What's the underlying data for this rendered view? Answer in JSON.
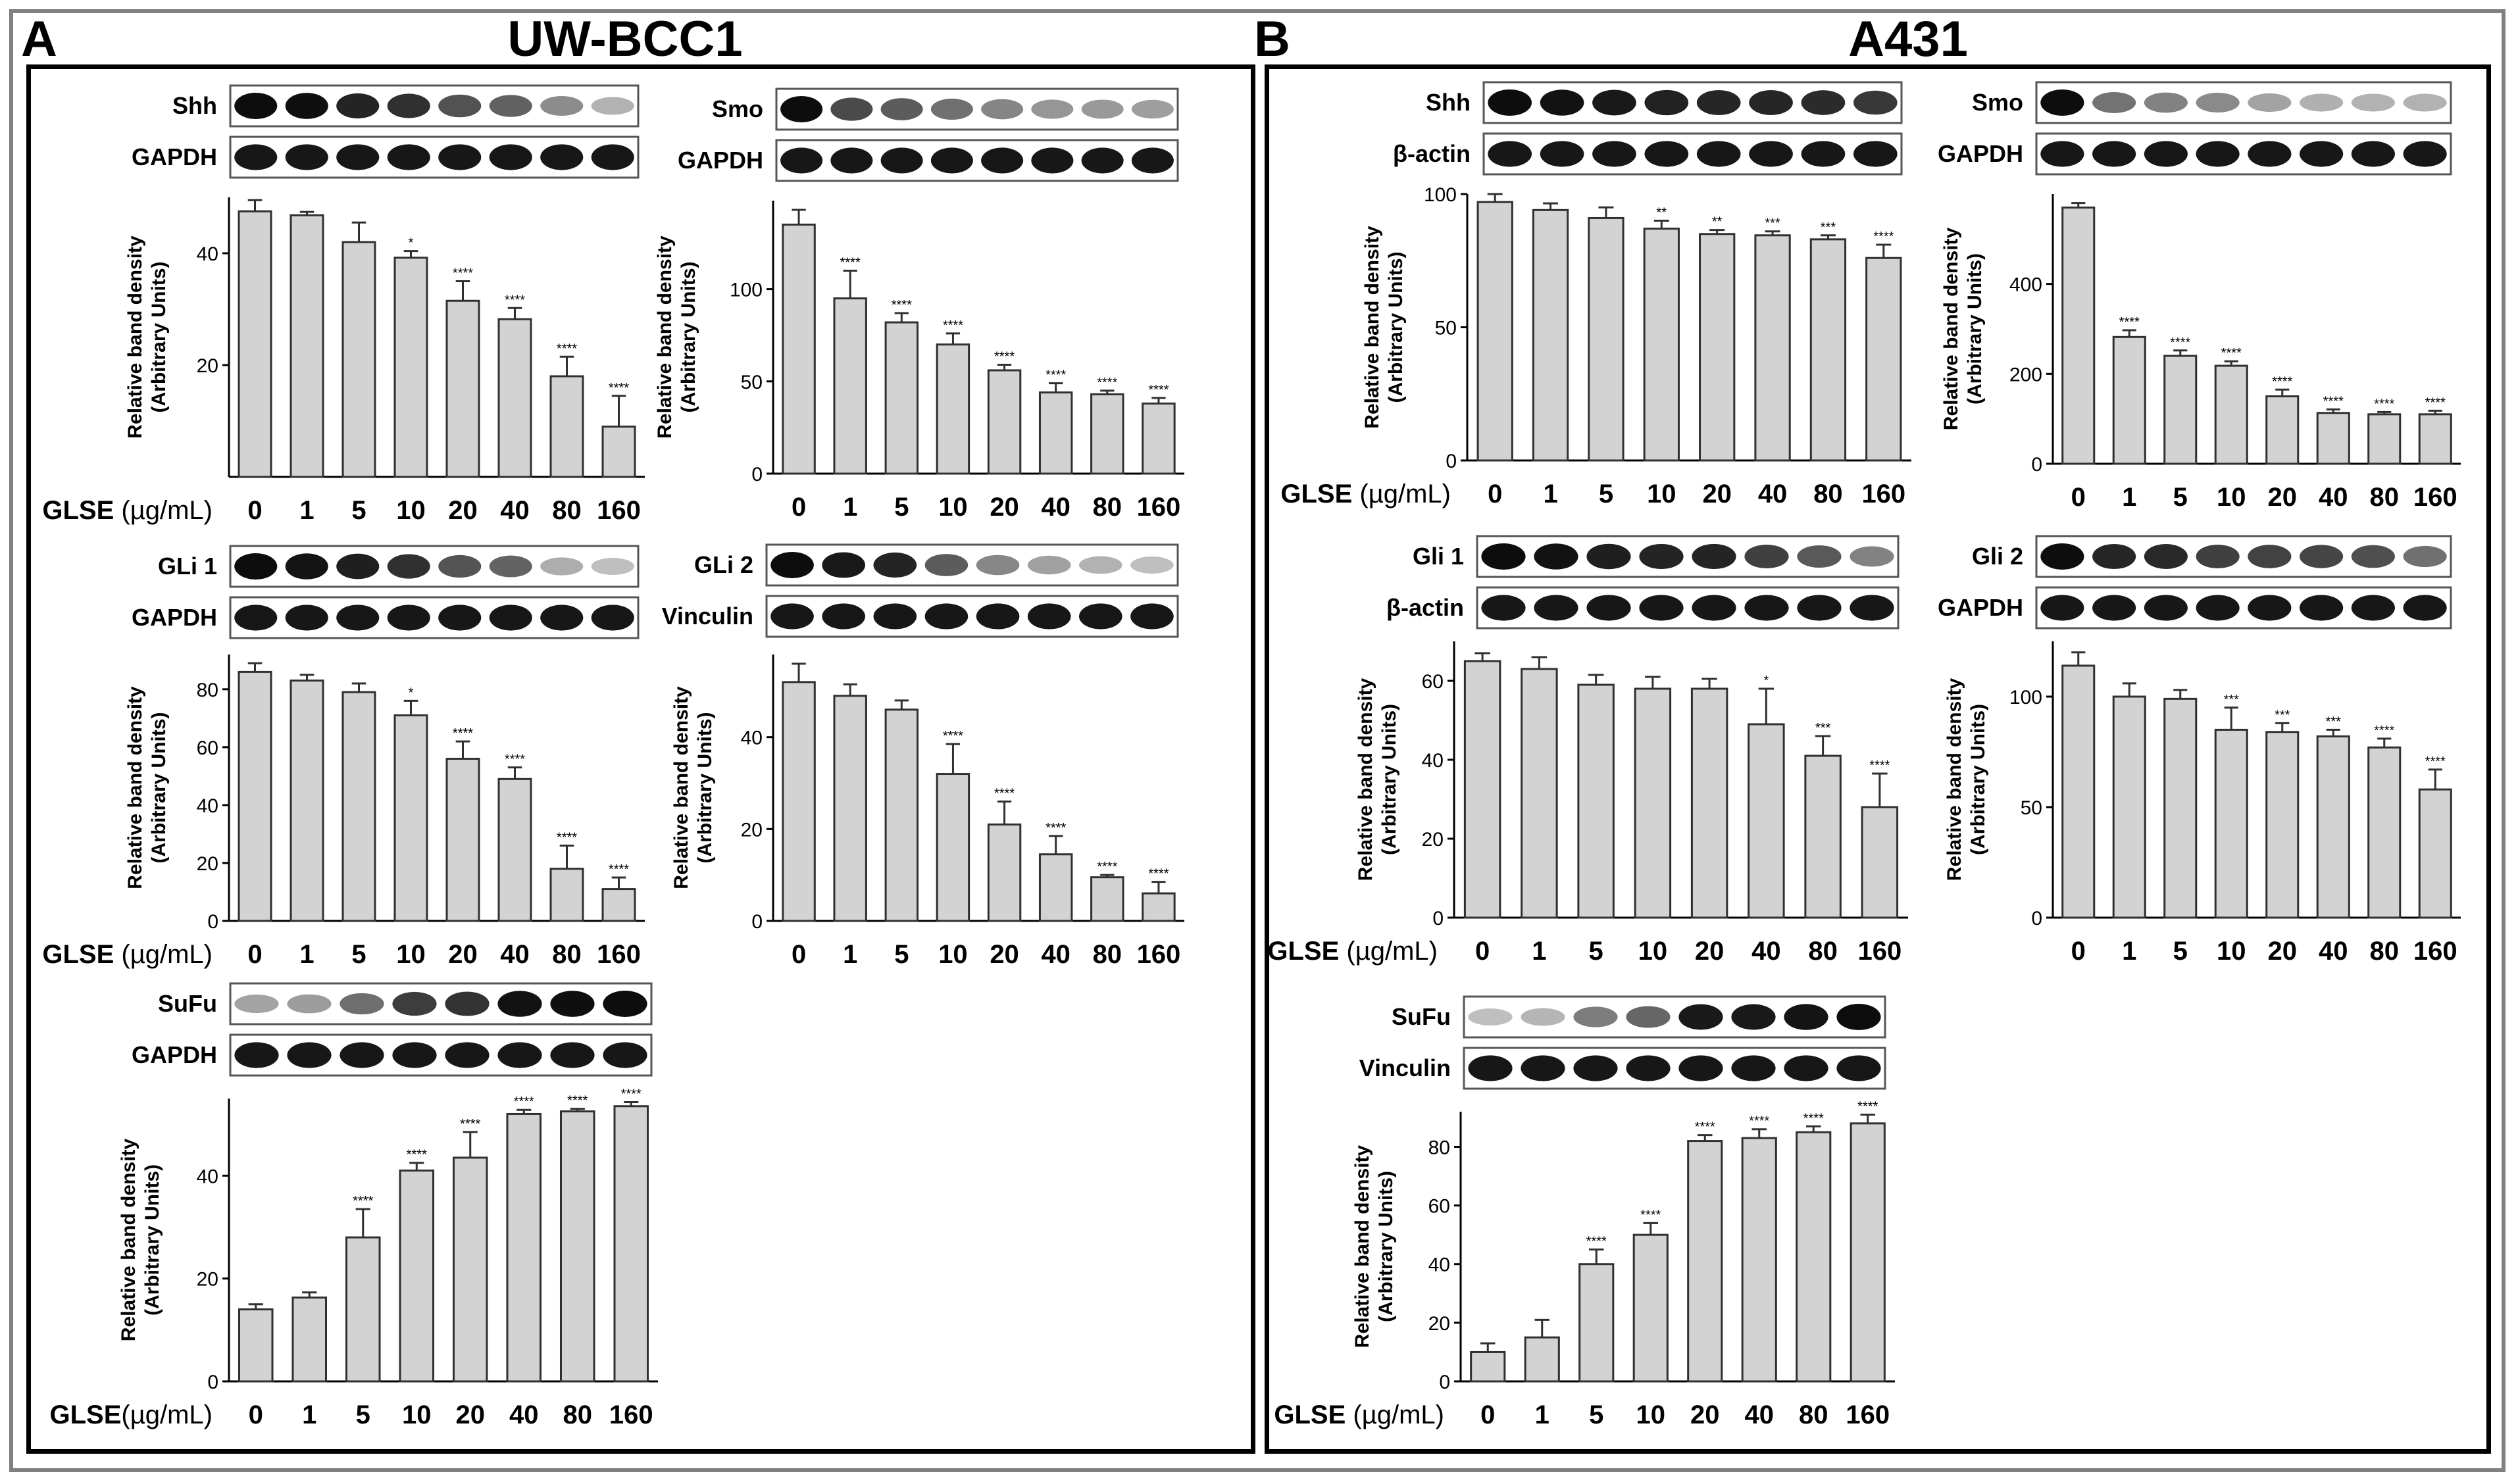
{
  "panel_a": {
    "letter": "A",
    "title": "UW-BCC1"
  },
  "panel_b": {
    "letter": "B",
    "title": "A431"
  },
  "colors": {
    "bar_fill": "#d3d3d3",
    "bar_stroke": "#303030",
    "axis": "#000000"
  },
  "common": {
    "ylabel_line1": "Relative band density",
    "ylabel_line2": "(Arbitrary Units)",
    "xaxis_prefix_spaced": "GLSE (µg/mL)",
    "xaxis_prefix_tight": "GLSE(µg/mL)"
  },
  "chart_data": [
    {
      "id": "a-shh",
      "type": "bar",
      "panel": "A",
      "protein": "Shh",
      "loading": "GAPDH",
      "categories": [
        "0",
        "1",
        "5",
        "10",
        "20",
        "40",
        "80",
        "160"
      ],
      "prefix": "spaced",
      "values": [
        47.5,
        46.8,
        42,
        39.2,
        31.5,
        28.2,
        18,
        9
      ],
      "errors": [
        2,
        0.6,
        3.5,
        1.2,
        3.5,
        2,
        3.5,
        5.5
      ],
      "significance": [
        "",
        "",
        "",
        "*",
        "****",
        "****",
        "****",
        "****"
      ],
      "ylim": [
        0,
        50
      ],
      "yticks": [
        20,
        40
      ]
    },
    {
      "id": "a-smo",
      "type": "bar",
      "panel": "A",
      "protein": "Smo",
      "loading": "GAPDH",
      "categories": [
        "0",
        "1",
        "5",
        "10",
        "20",
        "40",
        "80",
        "160"
      ],
      "prefix": "none",
      "values": [
        135,
        95,
        82,
        70,
        56,
        44,
        43,
        38
      ],
      "errors": [
        8,
        15,
        5,
        6,
        3,
        5,
        2,
        3
      ],
      "significance": [
        "",
        "****",
        "****",
        "****",
        "****",
        "****",
        "****",
        "****"
      ],
      "ylim": [
        0,
        148
      ],
      "yticks": [
        0,
        50,
        100
      ]
    },
    {
      "id": "a-gli1",
      "type": "bar",
      "panel": "A",
      "protein": "GLi 1",
      "loading": "GAPDH",
      "categories": [
        "0",
        "1",
        "5",
        "10",
        "20",
        "40",
        "80",
        "160"
      ],
      "prefix": "spaced",
      "values": [
        86,
        83,
        79,
        71,
        56,
        49,
        18,
        11
      ],
      "errors": [
        3,
        2,
        3,
        5,
        6,
        4,
        8,
        4
      ],
      "significance": [
        "",
        "",
        "",
        "*",
        "****",
        "****",
        "****",
        "****"
      ],
      "ylim": [
        0,
        92
      ],
      "yticks": [
        0,
        20,
        40,
        60,
        80
      ]
    },
    {
      "id": "a-gli2",
      "type": "bar",
      "panel": "A",
      "protein": "GLi 2",
      "loading": "Vinculin",
      "categories": [
        "0",
        "1",
        "5",
        "10",
        "20",
        "40",
        "80",
        "160"
      ],
      "prefix": "none",
      "values": [
        52,
        49,
        46,
        32,
        21,
        14.5,
        9.5,
        6
      ],
      "errors": [
        4,
        2.5,
        2,
        6.5,
        5,
        4,
        0.5,
        2.5
      ],
      "significance": [
        "",
        "",
        "",
        "****",
        "****",
        "****",
        "****",
        "****"
      ],
      "ylim": [
        0,
        58
      ],
      "yticks": [
        0,
        20,
        40
      ]
    },
    {
      "id": "a-sufu",
      "type": "bar",
      "panel": "A",
      "protein": "SuFu",
      "loading": "GAPDH",
      "categories": [
        "0",
        "1",
        "5",
        "10",
        "20",
        "40",
        "80",
        "160"
      ],
      "prefix": "tight",
      "values": [
        14,
        16.3,
        28,
        41,
        43.5,
        52,
        52.5,
        53.5
      ],
      "errors": [
        1,
        1,
        5.5,
        1.5,
        5,
        0.8,
        0.5,
        0.8
      ],
      "significance": [
        "",
        "",
        "****",
        "****",
        "****",
        "****",
        "****",
        "****"
      ],
      "ylim": [
        0,
        55
      ],
      "yticks": [
        0,
        20,
        40
      ]
    },
    {
      "id": "b-shh",
      "type": "bar",
      "panel": "B",
      "protein": "Shh",
      "loading": "β-actin",
      "categories": [
        "0",
        "1",
        "5",
        "10",
        "20",
        "40",
        "80",
        "160"
      ],
      "prefix": "spaced",
      "values": [
        97,
        94,
        91,
        87,
        85,
        84.5,
        83,
        76
      ],
      "errors": [
        3,
        2.5,
        4,
        3,
        1.5,
        1.5,
        1.5,
        5
      ],
      "significance": [
        "",
        "",
        "",
        "**",
        "**",
        "***",
        "***",
        "****"
      ],
      "ylim": [
        0,
        100
      ],
      "yticks": [
        0,
        50,
        100
      ]
    },
    {
      "id": "b-smo",
      "type": "bar",
      "panel": "B",
      "protein": "Smo",
      "loading": "GAPDH",
      "categories": [
        "0",
        "1",
        "5",
        "10",
        "20",
        "40",
        "80",
        "160"
      ],
      "prefix": "none",
      "values": [
        570,
        282,
        240,
        218,
        150,
        113,
        110,
        110
      ],
      "errors": [
        10,
        15,
        12,
        10,
        15,
        8,
        5,
        8
      ],
      "significance": [
        "",
        "****",
        "****",
        "****",
        "****",
        "****",
        "****",
        "****"
      ],
      "ylim": [
        0,
        600
      ],
      "yticks": [
        0,
        200,
        400
      ]
    },
    {
      "id": "b-gli1",
      "type": "bar",
      "panel": "B",
      "protein": "Gli 1",
      "loading": "β-actin",
      "categories": [
        "0",
        "1",
        "5",
        "10",
        "20",
        "40",
        "80",
        "160"
      ],
      "prefix": "spaced",
      "values": [
        65,
        63,
        59,
        58,
        58,
        49,
        41,
        28
      ],
      "errors": [
        2,
        3,
        2.5,
        3,
        2.5,
        9,
        5,
        8.5
      ],
      "significance": [
        "",
        "",
        "",
        "",
        "",
        "*",
        "***",
        "****"
      ],
      "ylim": [
        0,
        70
      ],
      "yticks": [
        0,
        20,
        40,
        60
      ]
    },
    {
      "id": "b-gli2",
      "type": "bar",
      "panel": "B",
      "protein": "Gli 2",
      "loading": "GAPDH",
      "categories": [
        "0",
        "1",
        "5",
        "10",
        "20",
        "40",
        "80",
        "160"
      ],
      "prefix": "none",
      "values": [
        114,
        100,
        99,
        85,
        84,
        82,
        77,
        58
      ],
      "errors": [
        6,
        6,
        4,
        10,
        4,
        3,
        4,
        9
      ],
      "significance": [
        "",
        "",
        "",
        "***",
        "***",
        "***",
        "****",
        "****"
      ],
      "ylim": [
        0,
        125
      ],
      "yticks": [
        0,
        50,
        100
      ]
    },
    {
      "id": "b-sufu",
      "type": "bar",
      "panel": "B",
      "protein": "SuFu",
      "loading": "Vinculin",
      "categories": [
        "0",
        "1",
        "5",
        "10",
        "20",
        "40",
        "80",
        "160"
      ],
      "prefix": "spaced",
      "values": [
        10,
        15,
        40,
        50,
        82,
        83,
        85,
        88
      ],
      "errors": [
        3,
        6,
        5,
        4,
        2,
        3,
        2,
        3
      ],
      "significance": [
        "",
        "",
        "****",
        "****",
        "****",
        "****",
        "****",
        "****"
      ],
      "ylim": [
        0,
        92
      ],
      "yticks": [
        0,
        20,
        40,
        60,
        80
      ]
    }
  ]
}
